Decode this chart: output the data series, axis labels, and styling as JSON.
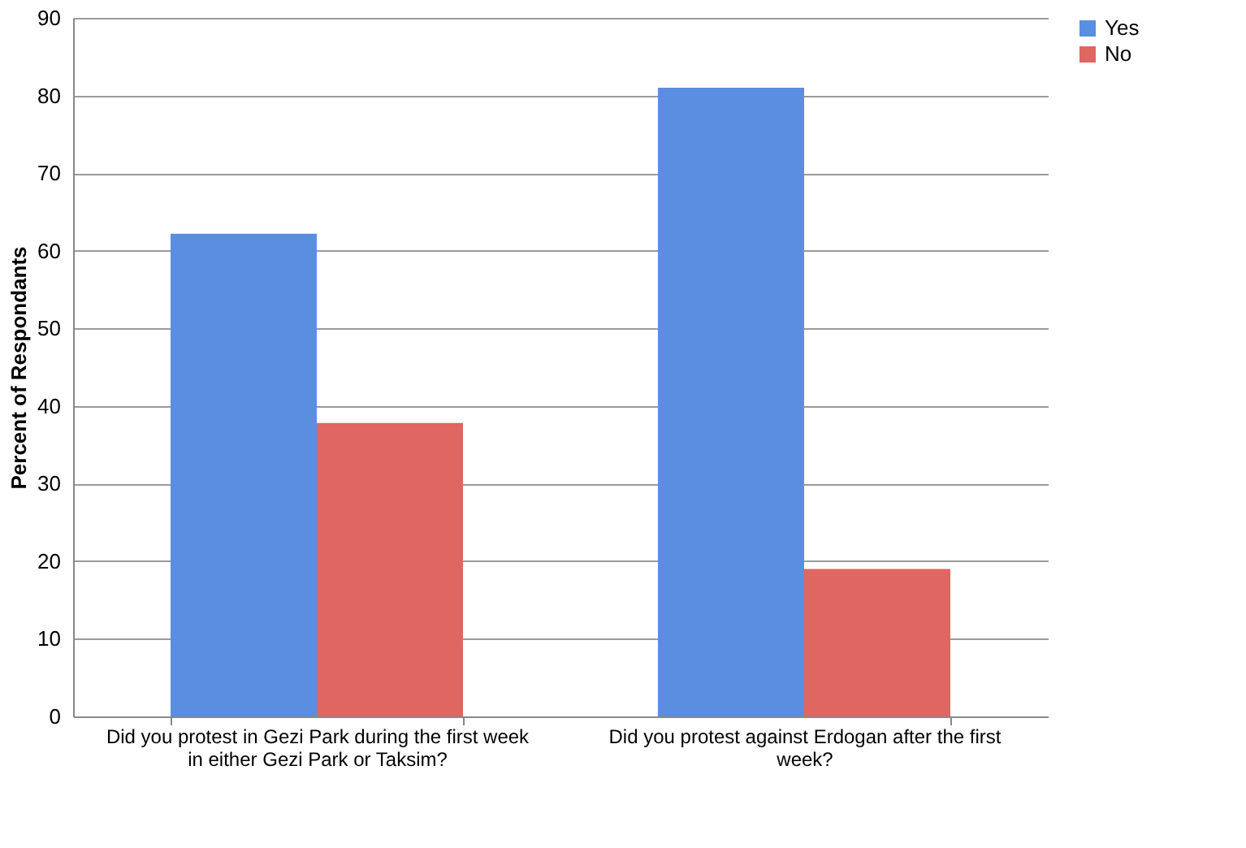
{
  "chart_data": {
    "type": "bar",
    "ylabel": "Percent of Respondants",
    "categories": [
      "Did you protest in Gezi Park during the first week in either Gezi Park or Taksim?",
      "Did you protest against Erdogan after the first week?"
    ],
    "series": [
      {
        "name": "Yes",
        "color": "#5a8ee0",
        "values": [
          62.2,
          81
        ]
      },
      {
        "name": "No",
        "color": "#e06662",
        "values": [
          37.8,
          19
        ]
      }
    ],
    "ylim": [
      0,
      90
    ],
    "yticks": [
      0,
      10,
      20,
      30,
      40,
      50,
      60,
      70,
      80,
      90
    ],
    "grid": "y",
    "legend": "right"
  }
}
